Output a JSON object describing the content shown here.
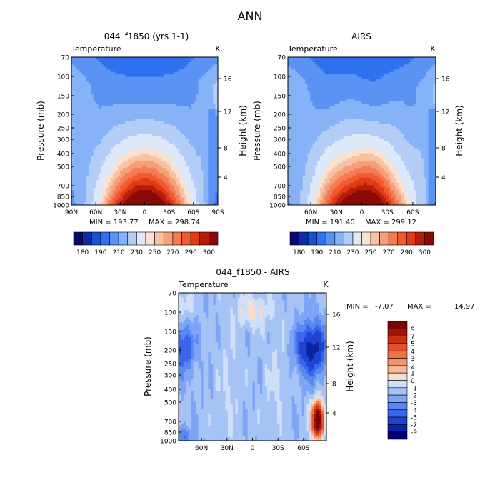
{
  "figure": {
    "title": "ANN"
  },
  "chart_data": [
    {
      "type": "heatmap",
      "title": "044_f1850 (yrs 1-1)",
      "field": "Temperature",
      "units": "K",
      "ylabel": "Pressure (mb)",
      "ylabel_right": "Height (km)",
      "x_ticks": [
        "90N",
        "60N",
        "30N",
        "0",
        "30S",
        "60S",
        "90S"
      ],
      "y_ticks": [
        "70",
        "100",
        "150",
        "200",
        "250",
        "300",
        "400",
        "500",
        "700",
        "850",
        "1000"
      ],
      "height_ticks": [
        "16",
        "12",
        "8",
        "4"
      ],
      "min_label": "MIN = 193.77",
      "max_label": "MAX = 298.74",
      "min": 193.77,
      "max": 298.74,
      "colorbar_labels": [
        "180",
        "190",
        "210",
        "230",
        "250",
        "270",
        "290",
        "300"
      ]
    },
    {
      "type": "heatmap",
      "title": "AIRS",
      "field": "Temperature",
      "units": "K",
      "ylabel": "Pressure (mb)",
      "ylabel_right": "Height (km)",
      "x_ticks": [
        "60N",
        "30N",
        "0",
        "30S",
        "60S"
      ],
      "y_ticks": [
        "70",
        "100",
        "150",
        "200",
        "250",
        "300",
        "400",
        "500",
        "700",
        "850",
        "1000"
      ],
      "height_ticks": [
        "16",
        "12",
        "8",
        "4"
      ],
      "min_label": "MIN = 191.40",
      "max_label": "MAX = 299.12",
      "min": 191.4,
      "max": 299.12,
      "colorbar_labels": [
        "180",
        "190",
        "210",
        "230",
        "250",
        "270",
        "290",
        "300"
      ]
    },
    {
      "type": "heatmap",
      "title": "044_f1850 - AIRS",
      "field": "Temperature",
      "units": "K",
      "ylabel": "Pressure (mb)",
      "ylabel_right": "Height (km)",
      "x_ticks": [
        "60N",
        "30N",
        "0",
        "30S",
        "60S"
      ],
      "y_ticks": [
        "70",
        "100",
        "150",
        "200",
        "250",
        "300",
        "400",
        "500",
        "700",
        "850",
        "1000"
      ],
      "height_ticks": [
        "16",
        "12",
        "8",
        "4"
      ],
      "min_label": "MIN =",
      "min_value": "-7.07",
      "max_label": "MAX =",
      "max_value": "14.97",
      "min": -7.07,
      "max": 14.97,
      "colorbar_labels": [
        "9",
        "7",
        "5",
        "4",
        "3",
        "2",
        "1",
        "0",
        "-1",
        "-2",
        "-3",
        "-4",
        "-5",
        "-7",
        "-9"
      ]
    }
  ]
}
